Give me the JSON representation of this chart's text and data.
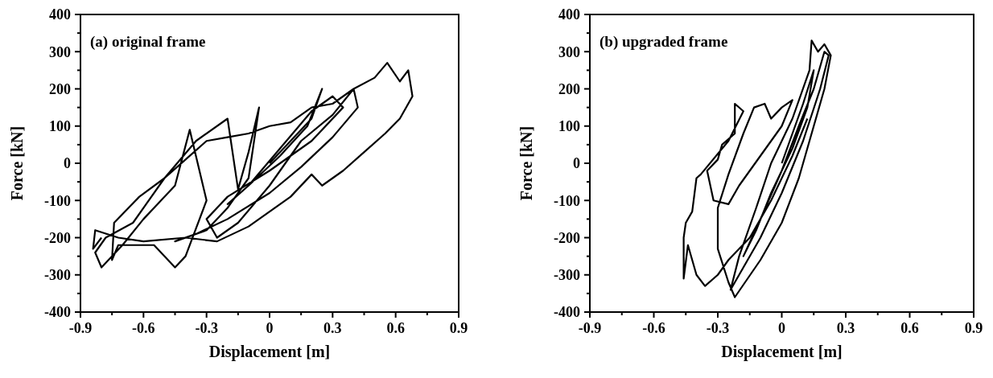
{
  "chart_data": [
    {
      "type": "line",
      "title": "(a) original frame",
      "xlabel": "Displacement [m]",
      "ylabel": "Force [kN]",
      "xlim": [
        -0.9,
        0.9
      ],
      "ylim": [
        -400,
        400
      ],
      "xticks": [
        -0.9,
        {
          "value": -0.75,
          "label": null
        },
        -0.6,
        {
          "value": -0.45,
          "label": null
        },
        -0.3,
        {
          "value": -0.15,
          "label": null
        },
        0,
        {
          "value": 0.15,
          "label": null
        },
        0.3,
        {
          "value": 0.45,
          "label": null
        },
        0.6,
        {
          "value": 0.75,
          "label": null
        },
        0.9
      ],
      "yticks": [
        -400,
        {
          "value": -350,
          "label": null
        },
        -300,
        {
          "value": -250,
          "label": null
        },
        -200,
        {
          "value": -150,
          "label": null
        },
        -100,
        {
          "value": -50,
          "label": null
        },
        0,
        {
          "value": 50,
          "label": null
        },
        100,
        {
          "value": 150,
          "label": null
        },
        200,
        {
          "value": 250,
          "label": null
        },
        300,
        {
          "value": 350,
          "label": null
        },
        400
      ],
      "series": [
        {
          "color": "#000000",
          "x": [
            0,
            0.1,
            0.2,
            0.25,
            0.18,
            0.05,
            -0.1,
            -0.2,
            -0.1,
            0.05,
            0.2,
            0.3,
            0.35,
            0.2,
            0,
            -0.2,
            -0.3,
            -0.25,
            -0.15,
            0,
            0.15,
            0.3,
            0.4,
            0.42,
            0.3,
            0.15,
            0,
            -0.2,
            -0.35,
            -0.45,
            -0.3,
            -0.2,
            -0.1,
            -0.05,
            -0.1,
            -0.15,
            -0.2,
            -0.35,
            -0.5,
            -0.65,
            -0.78,
            -0.83,
            -0.8,
            -0.7,
            -0.6,
            -0.45,
            -0.38,
            -0.3,
            -0.4,
            -0.45,
            -0.55,
            -0.72,
            -0.75,
            -0.74,
            -0.62,
            -0.5,
            -0.4,
            -0.3,
            -0.2,
            -0.1,
            0,
            0.1,
            0.2,
            0.3,
            0.4,
            0.5,
            0.56,
            0.62,
            0.66,
            0.68,
            0.62,
            0.55,
            0.45,
            0.35,
            0.25,
            0.2,
            0.1,
            -0.1,
            -0.25,
            -0.4,
            -0.6,
            -0.72,
            -0.83,
            -0.84,
            -0.8
          ],
          "values": [
            0,
            60,
            120,
            200,
            100,
            20,
            -60,
            -110,
            -60,
            40,
            140,
            180,
            150,
            60,
            -20,
            -90,
            -150,
            -200,
            -160,
            -60,
            60,
            130,
            200,
            150,
            70,
            -10,
            -80,
            -150,
            -190,
            -210,
            -180,
            -120,
            -40,
            150,
            30,
            -70,
            120,
            60,
            -40,
            -160,
            -200,
            -240,
            -280,
            -220,
            -150,
            -60,
            90,
            -100,
            -250,
            -280,
            -220,
            -220,
            -260,
            -160,
            -90,
            -40,
            10,
            60,
            70,
            80,
            100,
            110,
            150,
            160,
            200,
            230,
            270,
            220,
            250,
            180,
            120,
            80,
            30,
            -20,
            -60,
            -30,
            -90,
            -170,
            -210,
            -200,
            -210,
            -200,
            -180,
            -230,
            -200
          ]
        }
      ]
    },
    {
      "type": "line",
      "title": "(b) upgraded frame",
      "xlabel": "Displacement [m]",
      "ylabel": "Force [kN]",
      "xlim": [
        -0.9,
        0.9
      ],
      "ylim": [
        -400,
        400
      ],
      "xticks": [
        -0.9,
        {
          "value": -0.75,
          "label": null
        },
        -0.6,
        {
          "value": -0.45,
          "label": null
        },
        -0.3,
        {
          "value": -0.15,
          "label": null
        },
        0,
        {
          "value": 0.15,
          "label": null
        },
        0.3,
        {
          "value": 0.45,
          "label": null
        },
        0.6,
        {
          "value": 0.75,
          "label": null
        },
        0.9
      ],
      "yticks": [
        -400,
        {
          "value": -350,
          "label": null
        },
        -300,
        {
          "value": -250,
          "label": null
        },
        -200,
        {
          "value": -150,
          "label": null
        },
        -100,
        {
          "value": -50,
          "label": null
        },
        0,
        {
          "value": 50,
          "label": null
        },
        100,
        {
          "value": 150,
          "label": null
        },
        200,
        {
          "value": 250,
          "label": null
        },
        300,
        {
          "value": 350,
          "label": null
        },
        400
      ],
      "series": [
        {
          "color": "#000000",
          "x": [
            0,
            0.05,
            0.1,
            0.15,
            0.12,
            0.05,
            -0.05,
            -0.12,
            -0.18,
            -0.1,
            0,
            0.08,
            0.15,
            0.2,
            0.22,
            0.18,
            0.1,
            0,
            -0.1,
            -0.2,
            -0.24,
            -0.2,
            -0.12,
            -0.05,
            0.05,
            0.13,
            0.14,
            0.17,
            0.2,
            0.23,
            0.2,
            0.12,
            0.08,
            0,
            -0.1,
            -0.22,
            -0.25,
            -0.3,
            -0.3,
            -0.25,
            -0.18,
            -0.13,
            -0.08,
            -0.05,
            0,
            0.05,
            0,
            -0.1,
            -0.2,
            -0.25,
            -0.32,
            -0.35,
            -0.3,
            -0.28,
            -0.22,
            -0.22,
            -0.18,
            -0.25,
            -0.38,
            -0.4,
            -0.42,
            -0.45,
            -0.46,
            -0.46,
            -0.44,
            -0.4,
            -0.36,
            -0.3,
            -0.25,
            -0.15,
            -0.05,
            0.05,
            0.12
          ],
          "values": [
            0,
            80,
            160,
            250,
            150,
            40,
            -80,
            -180,
            -250,
            -150,
            -20,
            100,
            200,
            300,
            290,
            200,
            60,
            -80,
            -200,
            -300,
            -340,
            -250,
            -120,
            0,
            120,
            250,
            330,
            300,
            320,
            290,
            200,
            40,
            -40,
            -160,
            -260,
            -360,
            -320,
            -230,
            -120,
            -30,
            80,
            150,
            160,
            120,
            150,
            170,
            100,
            20,
            -60,
            -110,
            -100,
            -20,
            10,
            50,
            80,
            160,
            140,
            60,
            -30,
            -40,
            -130,
            -160,
            -200,
            -310,
            -220,
            -300,
            -330,
            -300,
            -260,
            -200,
            -100,
            20,
            120
          ]
        }
      ]
    }
  ]
}
